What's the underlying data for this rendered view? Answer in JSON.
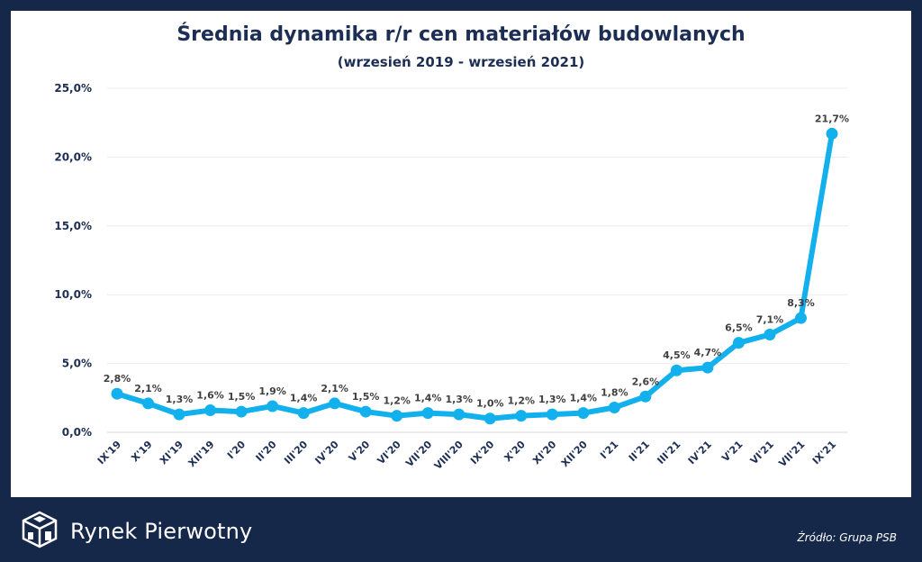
{
  "chart_data": {
    "type": "line",
    "title": "Średnia dynamika r/r cen materiałów budowlanych",
    "subtitle": "(wrzesień 2019 - wrzesień 2021)",
    "categories": [
      "IX'19",
      "X'19",
      "XI'19",
      "XII'19",
      "I'20",
      "II'20",
      "III'20",
      "IV'20",
      "V'20",
      "VI'20",
      "VII'20",
      "VIII'20",
      "IX'20",
      "X'20",
      "XI'20",
      "XII'20",
      "I'21",
      "II'21",
      "III'21",
      "IV'21",
      "V'21",
      "VI'21",
      "VII'21",
      "IX'21"
    ],
    "values": [
      2.8,
      2.1,
      1.3,
      1.6,
      1.5,
      1.9,
      1.4,
      2.1,
      1.5,
      1.2,
      1.4,
      1.3,
      1.0,
      1.2,
      1.3,
      1.4,
      1.8,
      2.6,
      4.5,
      4.7,
      6.5,
      7.1,
      8.3,
      21.7
    ],
    "data_labels": [
      "2,8%",
      "2,1%",
      "1,3%",
      "1,6%",
      "1,5%",
      "1,9%",
      "1,4%",
      "2,1%",
      "1,5%",
      "1,2%",
      "1,4%",
      "1,3%",
      "1,0%",
      "1,2%",
      "1,3%",
      "1,4%",
      "1,8%",
      "2,6%",
      "4,5%",
      "4,7%",
      "6,5%",
      "7,1%",
      "8,3%",
      "21,7%"
    ],
    "y_ticks": [
      "0,0%",
      "5,0%",
      "10,0%",
      "15,0%",
      "20,0%",
      "25,0%"
    ],
    "ylim": [
      0,
      25
    ],
    "grid": true,
    "line_color": "#12b0ec"
  },
  "footer": {
    "brand": "Rynek Pierwotny",
    "source": "Źródło: Grupa PSB"
  },
  "icons": {
    "logo": "cube-house-logo-icon"
  }
}
